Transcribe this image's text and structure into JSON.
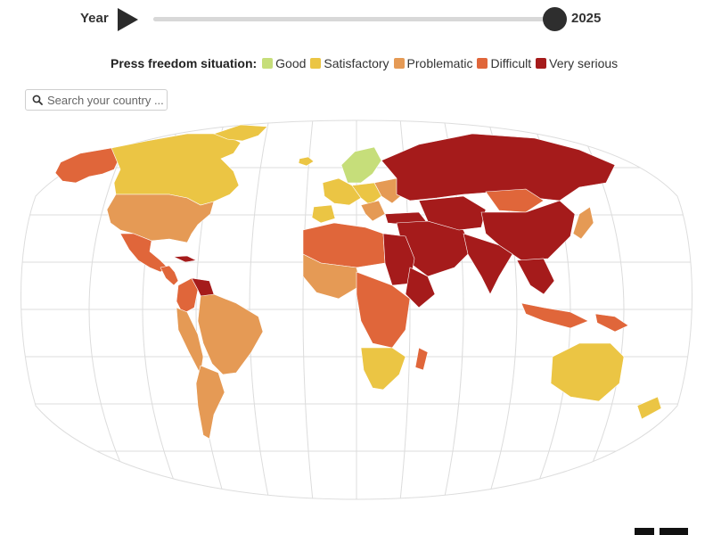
{
  "controls": {
    "year_label": "Year",
    "year_value": "2025",
    "slider_position": 1.0
  },
  "legend": {
    "title": "Press freedom situation:",
    "categories": [
      {
        "key": "good",
        "label": "Good",
        "color": "#c6de7a"
      },
      {
        "key": "satisfactory",
        "label": "Satisfactory",
        "color": "#ebc544"
      },
      {
        "key": "problematic",
        "label": "Problematic",
        "color": "#e59a55"
      },
      {
        "key": "difficult",
        "label": "Difficult",
        "color": "#e0663a"
      },
      {
        "key": "very_serious",
        "label": "Very serious",
        "color": "#a51b1b"
      }
    ]
  },
  "search": {
    "placeholder": "Search your country ..."
  },
  "map": {
    "projection": "robinson",
    "graticule_color": "#dcdcdc",
    "regions": [
      {
        "name": "canada",
        "status": "satisfactory"
      },
      {
        "name": "alaska",
        "status": "difficult"
      },
      {
        "name": "greenland",
        "status": "satisfactory"
      },
      {
        "name": "united-states",
        "status": "problematic"
      },
      {
        "name": "mexico",
        "status": "difficult"
      },
      {
        "name": "central-america",
        "status": "difficult"
      },
      {
        "name": "cuba",
        "status": "very_serious"
      },
      {
        "name": "venezuela",
        "status": "very_serious"
      },
      {
        "name": "colombia",
        "status": "difficult"
      },
      {
        "name": "brazil",
        "status": "problematic"
      },
      {
        "name": "andes",
        "status": "problematic"
      },
      {
        "name": "argentina",
        "status": "problematic"
      },
      {
        "name": "scandinavia",
        "status": "good"
      },
      {
        "name": "iceland",
        "status": "satisfactory"
      },
      {
        "name": "western-europe",
        "status": "satisfactory"
      },
      {
        "name": "iberia",
        "status": "satisfactory"
      },
      {
        "name": "central-europe",
        "status": "satisfactory"
      },
      {
        "name": "balkans",
        "status": "problematic"
      },
      {
        "name": "eastern-europe",
        "status": "problematic"
      },
      {
        "name": "russia",
        "status": "very_serious"
      },
      {
        "name": "turkey",
        "status": "very_serious"
      },
      {
        "name": "middle-east",
        "status": "very_serious"
      },
      {
        "name": "central-asia",
        "status": "very_serious"
      },
      {
        "name": "mongolia",
        "status": "difficult"
      },
      {
        "name": "china",
        "status": "very_serious"
      },
      {
        "name": "india",
        "status": "very_serious"
      },
      {
        "name": "japan",
        "status": "problematic"
      },
      {
        "name": "southeast-asia",
        "status": "very_serious"
      },
      {
        "name": "indonesia",
        "status": "difficult"
      },
      {
        "name": "north-africa",
        "status": "difficult"
      },
      {
        "name": "west-africa",
        "status": "problematic"
      },
      {
        "name": "egypt-sudan",
        "status": "very_serious"
      },
      {
        "name": "horn-of-africa",
        "status": "very_serious"
      },
      {
        "name": "central-africa",
        "status": "difficult"
      },
      {
        "name": "southern-africa",
        "status": "satisfactory"
      },
      {
        "name": "madagascar",
        "status": "difficult"
      },
      {
        "name": "australia",
        "status": "satisfactory"
      },
      {
        "name": "new-zealand",
        "status": "satisfactory"
      },
      {
        "name": "papua-new-guinea",
        "status": "difficult"
      }
    ]
  }
}
